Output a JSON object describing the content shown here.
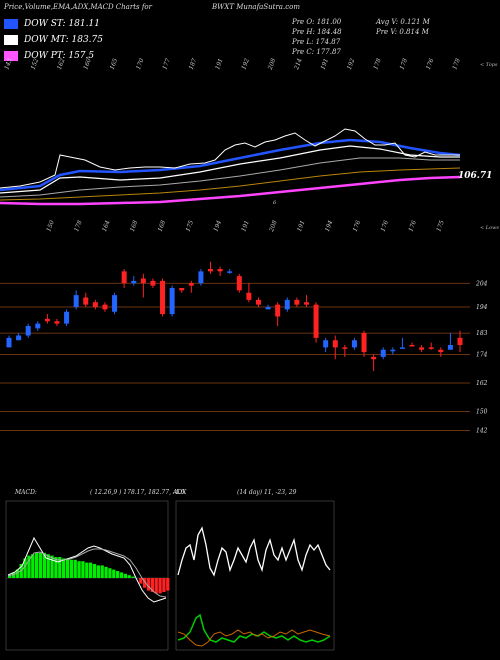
{
  "header": {
    "left": "Price,Volume,EMA,ADX,MACD Charts for",
    "center": "BWXT MunafaSutra.com"
  },
  "legend": [
    {
      "label": "DOW ST: 181.11",
      "color": "#2255ff"
    },
    {
      "label": "DOW MT: 183.75",
      "color": "#ffffff"
    },
    {
      "label": "DOW PT: 157.5",
      "color": "#ff55ff"
    }
  ],
  "info": {
    "col1": [
      "Pre  O: 181.00",
      "Pre  H: 184.48",
      "Pre  L: 174.87",
      "Pre  C: 177.87"
    ],
    "col2": [
      "Avg V: 0.121 M",
      "Pre  V: 0.814  M"
    ]
  },
  "ema_panel": {
    "top_ticks": [
      "143",
      "152",
      "162",
      "160",
      "165",
      "170",
      "177",
      "187",
      "191",
      "192",
      "208",
      "214",
      "191",
      "192",
      "178",
      "178",
      "176",
      "178"
    ],
    "corner_label": "< Tops",
    "value_label": "106.71",
    "marker": "6"
  },
  "price_panel": {
    "top_ticks": [
      "150",
      "178",
      "164",
      "168",
      "168",
      "175",
      "194",
      "191",
      "208",
      "191",
      "194",
      "176",
      "176",
      "176",
      "175"
    ],
    "corner_label": "< Lows",
    "levels": [
      "204",
      "194",
      "183",
      "174",
      "162",
      "150",
      "142"
    ]
  },
  "macd": {
    "label": "MACD:",
    "values": "( 12.26,9 ) 178.17,  182.77, -4.6"
  },
  "adx": {
    "label": "ADX",
    "values": "(14  day) 11,  -23,  29"
  },
  "chart_data": {
    "type": "candlestick",
    "series": [
      {
        "name": "DOW ST",
        "values": [
          181.11
        ]
      },
      {
        "name": "DOW MT",
        "values": [
          183.75
        ]
      },
      {
        "name": "DOW PT",
        "values": [
          157.5
        ]
      }
    ],
    "candles": [
      {
        "o": 177,
        "c": 181,
        "h": 182,
        "l": 177,
        "color": "blue"
      },
      {
        "o": 180,
        "c": 182,
        "h": 183,
        "l": 180,
        "color": "blue"
      },
      {
        "o": 182,
        "c": 186,
        "h": 187,
        "l": 181,
        "color": "blue"
      },
      {
        "o": 185,
        "c": 187,
        "h": 188,
        "l": 184,
        "color": "blue"
      },
      {
        "o": 189,
        "c": 188,
        "h": 191,
        "l": 187,
        "color": "red"
      },
      {
        "o": 187,
        "c": 188,
        "h": 189,
        "l": 186,
        "color": "red"
      },
      {
        "o": 187,
        "c": 192,
        "h": 193,
        "l": 186,
        "color": "blue"
      },
      {
        "o": 194,
        "c": 199,
        "h": 201,
        "l": 193,
        "color": "blue"
      },
      {
        "o": 198,
        "c": 195,
        "h": 200,
        "l": 194,
        "color": "red"
      },
      {
        "o": 196,
        "c": 194,
        "h": 197,
        "l": 193,
        "color": "red"
      },
      {
        "o": 193,
        "c": 195,
        "h": 196,
        "l": 192,
        "color": "red"
      },
      {
        "o": 192,
        "c": 199,
        "h": 200,
        "l": 191,
        "color": "blue"
      },
      {
        "o": 209,
        "c": 204,
        "h": 210,
        "l": 202,
        "color": "red"
      },
      {
        "o": 204,
        "c": 205,
        "h": 207,
        "l": 203,
        "color": "blue"
      },
      {
        "o": 204,
        "c": 206,
        "h": 208,
        "l": 198,
        "color": "red"
      },
      {
        "o": 205,
        "c": 203,
        "h": 206,
        "l": 202,
        "color": "red"
      },
      {
        "o": 205,
        "c": 191,
        "h": 206,
        "l": 190,
        "color": "red"
      },
      {
        "o": 191,
        "c": 202,
        "h": 203,
        "l": 190,
        "color": "blue"
      },
      {
        "o": 201,
        "c": 202,
        "h": 202,
        "l": 200,
        "color": "red"
      },
      {
        "o": 203,
        "c": 204,
        "h": 205,
        "l": 200,
        "color": "red"
      },
      {
        "o": 204,
        "c": 209,
        "h": 210,
        "l": 203,
        "color": "blue"
      },
      {
        "o": 209,
        "c": 210,
        "h": 213,
        "l": 208,
        "color": "red"
      },
      {
        "o": 210,
        "c": 209,
        "h": 211,
        "l": 207,
        "color": "red"
      },
      {
        "o": 209,
        "c": 209,
        "h": 210,
        "l": 208,
        "color": "blue"
      },
      {
        "o": 207,
        "c": 201,
        "h": 208,
        "l": 200,
        "color": "red"
      },
      {
        "o": 200,
        "c": 197,
        "h": 204,
        "l": 196,
        "color": "red"
      },
      {
        "o": 197,
        "c": 195,
        "h": 198,
        "l": 194,
        "color": "red"
      },
      {
        "o": 193,
        "c": 194,
        "h": 195,
        "l": 193,
        "color": "blue"
      },
      {
        "o": 195,
        "c": 190,
        "h": 196,
        "l": 186,
        "color": "red"
      },
      {
        "o": 193,
        "c": 197,
        "h": 198,
        "l": 192,
        "color": "blue"
      },
      {
        "o": 195,
        "c": 197,
        "h": 198,
        "l": 194,
        "color": "red"
      },
      {
        "o": 196,
        "c": 195,
        "h": 199,
        "l": 194,
        "color": "red"
      },
      {
        "o": 195,
        "c": 181,
        "h": 196,
        "l": 179,
        "color": "red"
      },
      {
        "o": 177,
        "c": 180,
        "h": 181,
        "l": 175,
        "color": "blue"
      },
      {
        "o": 180,
        "c": 177,
        "h": 182,
        "l": 172,
        "color": "red"
      },
      {
        "o": 177,
        "c": 177,
        "h": 178,
        "l": 173,
        "color": "red"
      },
      {
        "o": 177,
        "c": 180,
        "h": 181,
        "l": 176,
        "color": "blue"
      },
      {
        "o": 183,
        "c": 175,
        "h": 184,
        "l": 173,
        "color": "red"
      },
      {
        "o": 173,
        "c": 172,
        "h": 174,
        "l": 167,
        "color": "red"
      },
      {
        "o": 173,
        "c": 176,
        "h": 177,
        "l": 172,
        "color": "blue"
      },
      {
        "o": 176,
        "c": 176,
        "h": 177,
        "l": 174,
        "color": "blue"
      },
      {
        "o": 177,
        "c": 177,
        "h": 181,
        "l": 177,
        "color": "blue"
      },
      {
        "o": 178,
        "c": 178,
        "h": 179,
        "l": 178,
        "color": "red"
      },
      {
        "o": 177,
        "c": 176,
        "h": 178,
        "l": 175,
        "color": "red"
      },
      {
        "o": 177,
        "c": 177,
        "h": 179,
        "l": 176,
        "color": "red"
      },
      {
        "o": 176,
        "c": 175,
        "h": 177,
        "l": 173,
        "color": "red"
      },
      {
        "o": 176,
        "c": 178,
        "h": 183,
        "l": 176,
        "color": "blue"
      },
      {
        "o": 181,
        "c": 178,
        "h": 184,
        "l": 175,
        "color": "red"
      }
    ],
    "ylim": [
      138,
      218
    ]
  }
}
